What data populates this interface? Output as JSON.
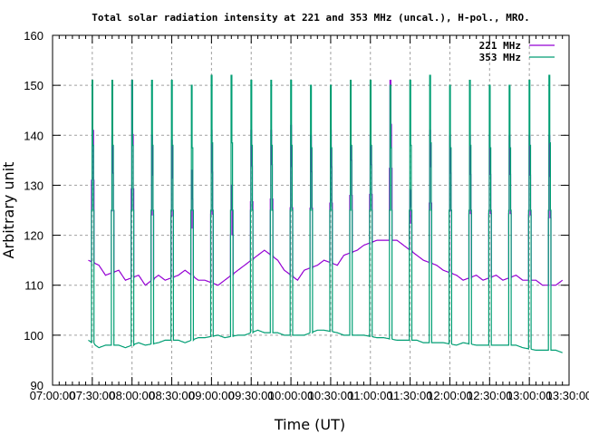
{
  "chart_data": {
    "type": "line",
    "title": "Total solar radiation intensity at 221 and 353 MHz (uncal.), H-pol., MRO.",
    "xlabel": "Time (UT)",
    "ylabel": "Arbitrary unit",
    "xlim": [
      "07:00",
      "13:30"
    ],
    "ylim": [
      90,
      160
    ],
    "grid": true,
    "legend_position": "top-right",
    "x_ticks": [
      "07:00:00",
      "07:30:00",
      "08:00:00",
      "08:30:00",
      "09:00:00",
      "09:30:00",
      "10:00:00",
      "10:30:00",
      "11:00:00",
      "11:30:00",
      "12:00:00",
      "12:30:00",
      "13:00:00",
      "13:30:00"
    ],
    "y_ticks": [
      "90",
      "100",
      "110",
      "120",
      "130",
      "140",
      "150",
      "160"
    ],
    "series": [
      {
        "name": "221 MHz",
        "color": "#9400d3",
        "baseline": [
          [
            "07:27",
            115
          ],
          [
            "07:35",
            114
          ],
          [
            "07:40",
            112
          ],
          [
            "07:50",
            113
          ],
          [
            "07:55",
            111
          ],
          [
            "08:05",
            112
          ],
          [
            "08:10",
            110
          ],
          [
            "08:20",
            112
          ],
          [
            "08:25",
            111
          ],
          [
            "08:35",
            112
          ],
          [
            "08:40",
            113
          ],
          [
            "08:50",
            111
          ],
          [
            "08:55",
            111
          ],
          [
            "09:05",
            110
          ],
          [
            "09:10",
            111
          ],
          [
            "09:20",
            113
          ],
          [
            "09:25",
            114
          ],
          [
            "09:35",
            116
          ],
          [
            "09:40",
            117
          ],
          [
            "09:50",
            115
          ],
          [
            "09:55",
            113
          ],
          [
            "10:05",
            111
          ],
          [
            "10:10",
            113
          ],
          [
            "10:20",
            114
          ],
          [
            "10:25",
            115
          ],
          [
            "10:35",
            114
          ],
          [
            "10:40",
            116
          ],
          [
            "10:50",
            117
          ],
          [
            "10:55",
            118
          ],
          [
            "11:05",
            119
          ],
          [
            "11:10",
            119
          ],
          [
            "11:20",
            119
          ],
          [
            "11:25",
            118
          ],
          [
            "11:35",
            116
          ],
          [
            "11:40",
            115
          ],
          [
            "11:50",
            114
          ],
          [
            "11:55",
            113
          ],
          [
            "12:05",
            112
          ],
          [
            "12:10",
            111
          ],
          [
            "12:20",
            112
          ],
          [
            "12:25",
            111
          ],
          [
            "12:35",
            112
          ],
          [
            "12:40",
            111
          ],
          [
            "12:50",
            112
          ],
          [
            "12:55",
            111
          ],
          [
            "13:05",
            111
          ],
          [
            "13:10",
            110
          ],
          [
            "13:20",
            110
          ],
          [
            "13:25",
            111
          ]
        ],
        "spike_peaks": [
          151,
          140,
          151,
          140,
          139,
          133,
          141,
          130,
          141,
          141,
          142,
          140,
          141,
          142,
          140,
          151,
          129,
          141,
          140,
          140,
          140,
          140,
          140,
          140
        ]
      },
      {
        "name": "353 MHz",
        "color": "#009e73",
        "baseline": [
          [
            "07:27",
            99
          ],
          [
            "07:35",
            97.5
          ],
          [
            "07:40",
            98
          ],
          [
            "07:50",
            98
          ],
          [
            "07:55",
            97.5
          ],
          [
            "08:05",
            98.5
          ],
          [
            "08:10",
            98
          ],
          [
            "08:20",
            98.5
          ],
          [
            "08:25",
            99
          ],
          [
            "08:35",
            99
          ],
          [
            "08:40",
            98.5
          ],
          [
            "08:50",
            99.5
          ],
          [
            "08:55",
            99.5
          ],
          [
            "09:05",
            100
          ],
          [
            "09:10",
            99.5
          ],
          [
            "09:20",
            100
          ],
          [
            "09:25",
            100
          ],
          [
            "09:35",
            101
          ],
          [
            "09:40",
            100.5
          ],
          [
            "09:50",
            100.5
          ],
          [
            "09:55",
            100
          ],
          [
            "10:05",
            100
          ],
          [
            "10:10",
            100
          ],
          [
            "10:20",
            101
          ],
          [
            "10:25",
            101
          ],
          [
            "10:35",
            100.5
          ],
          [
            "10:40",
            100
          ],
          [
            "10:50",
            100
          ],
          [
            "10:55",
            100
          ],
          [
            "11:05",
            99.5
          ],
          [
            "11:10",
            99.5
          ],
          [
            "11:20",
            99
          ],
          [
            "11:25",
            99
          ],
          [
            "11:35",
            99
          ],
          [
            "11:40",
            98.5
          ],
          [
            "11:50",
            98.5
          ],
          [
            "11:55",
            98.5
          ],
          [
            "12:05",
            98
          ],
          [
            "12:10",
            98.5
          ],
          [
            "12:20",
            98
          ],
          [
            "12:25",
            98
          ],
          [
            "12:35",
            98
          ],
          [
            "12:40",
            98
          ],
          [
            "12:50",
            98
          ],
          [
            "12:55",
            97.5
          ],
          [
            "13:05",
            97
          ],
          [
            "13:10",
            97
          ],
          [
            "13:20",
            97
          ],
          [
            "13:25",
            96.5
          ]
        ],
        "spike_peaks": [
          151,
          151,
          151,
          151,
          151,
          150,
          152,
          152,
          151,
          151,
          151,
          150,
          150,
          151,
          151,
          150,
          151,
          152,
          150,
          151,
          150,
          150,
          151,
          152
        ]
      }
    ],
    "spike_times": [
      "07:30",
      "07:45",
      "08:00",
      "08:15",
      "08:30",
      "08:45",
      "09:00",
      "09:15",
      "09:30",
      "09:45",
      "10:00",
      "10:15",
      "10:30",
      "10:45",
      "11:00",
      "11:15",
      "11:30",
      "11:45",
      "12:00",
      "12:15",
      "12:30",
      "12:45",
      "13:00",
      "13:15"
    ]
  }
}
